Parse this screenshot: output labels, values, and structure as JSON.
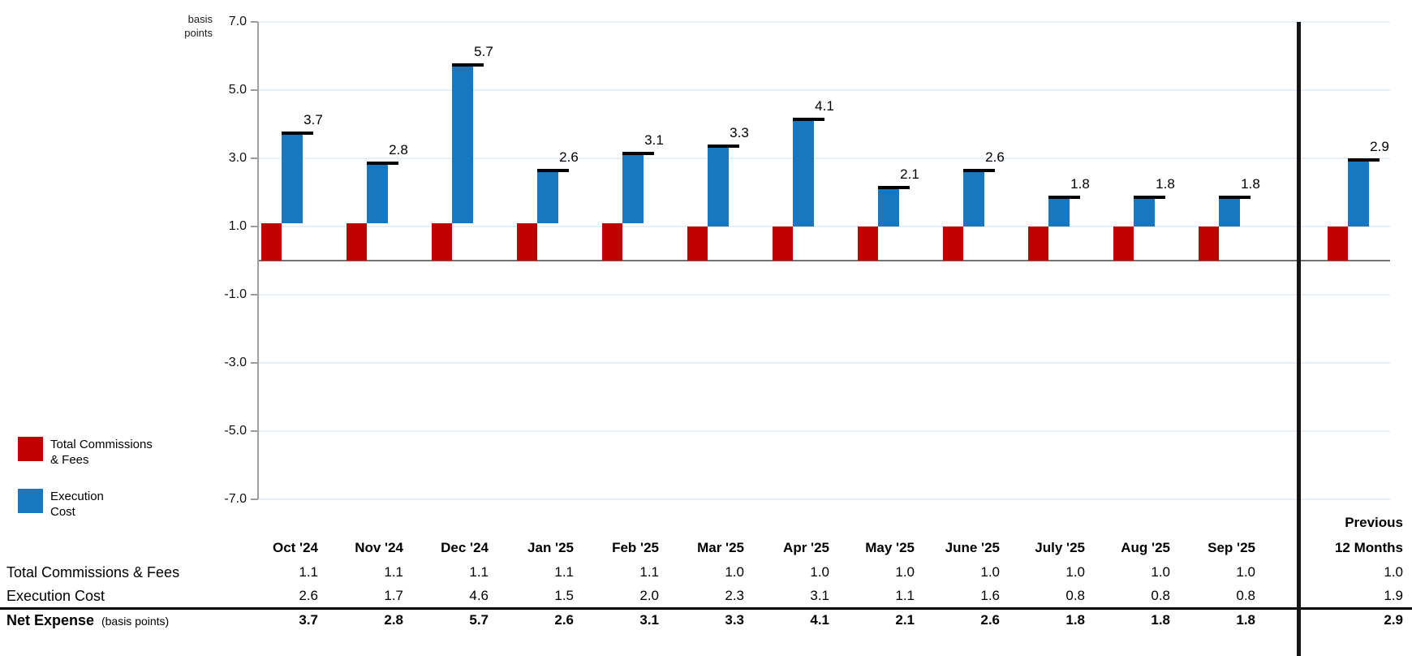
{
  "axis": {
    "unit_line1": "basis",
    "unit_line2": "points",
    "yticks": [
      7.0,
      5.0,
      3.0,
      1.0,
      -1.0,
      -3.0,
      -5.0,
      -7.0
    ]
  },
  "legend": {
    "items": [
      {
        "key": "tcf",
        "line1": "Total Commissions",
        "line2": "& Fees",
        "color": "#C00000"
      },
      {
        "key": "ec",
        "line1": "Execution",
        "line2": "Cost",
        "color": "#1877BE"
      }
    ]
  },
  "chart_data": {
    "type": "bar",
    "subtype": "stacked-offset-with-total-marker",
    "title": "",
    "ylabel": "basis points",
    "ylim": [
      -7.0,
      7.0
    ],
    "ytick_step": 2.0,
    "grid": "horizontal",
    "legend_position": "bottom-left",
    "categories": [
      "Oct '24",
      "Nov '24",
      "Dec '24",
      "Jan '25",
      "Feb '25",
      "Mar '25",
      "Apr '25",
      "May '25",
      "June '25",
      "July '25",
      "Aug '25",
      "Sep '25"
    ],
    "summary_category": "Previous 12 Months",
    "series": [
      {
        "name": "Total Commissions & Fees",
        "color": "#C00000",
        "values": [
          1.1,
          1.1,
          1.1,
          1.1,
          1.1,
          1.0,
          1.0,
          1.0,
          1.0,
          1.0,
          1.0,
          1.0
        ],
        "summary_value": 1.0
      },
      {
        "name": "Execution Cost",
        "color": "#1877BE",
        "values": [
          2.6,
          1.7,
          4.6,
          1.5,
          2.0,
          2.3,
          3.1,
          1.1,
          1.6,
          0.8,
          0.8,
          0.8
        ],
        "summary_value": 1.9
      }
    ],
    "totals": {
      "name": "Net Expense",
      "unit": "basis points",
      "values": [
        3.7,
        2.8,
        5.7,
        2.6,
        3.1,
        3.3,
        4.1,
        2.1,
        2.6,
        1.8,
        1.8,
        1.8
      ],
      "summary_value": 2.9
    }
  },
  "table": {
    "header": {
      "prev_line1": "Previous",
      "prev_line2": "12 Months"
    },
    "row_labels": {
      "tcf": "Total Commissions & Fees",
      "ec": "Execution Cost",
      "net": "Net Expense",
      "net_suffix": "(basis points)"
    }
  },
  "colors": {
    "tcf_bar": "#C00000",
    "ec_bar": "#1877BE",
    "total_marker": "#000000",
    "gridline": "#E9EFF7",
    "zero_line": "#737373",
    "axis_line": "#A0A0A0",
    "separator": "#141414"
  }
}
